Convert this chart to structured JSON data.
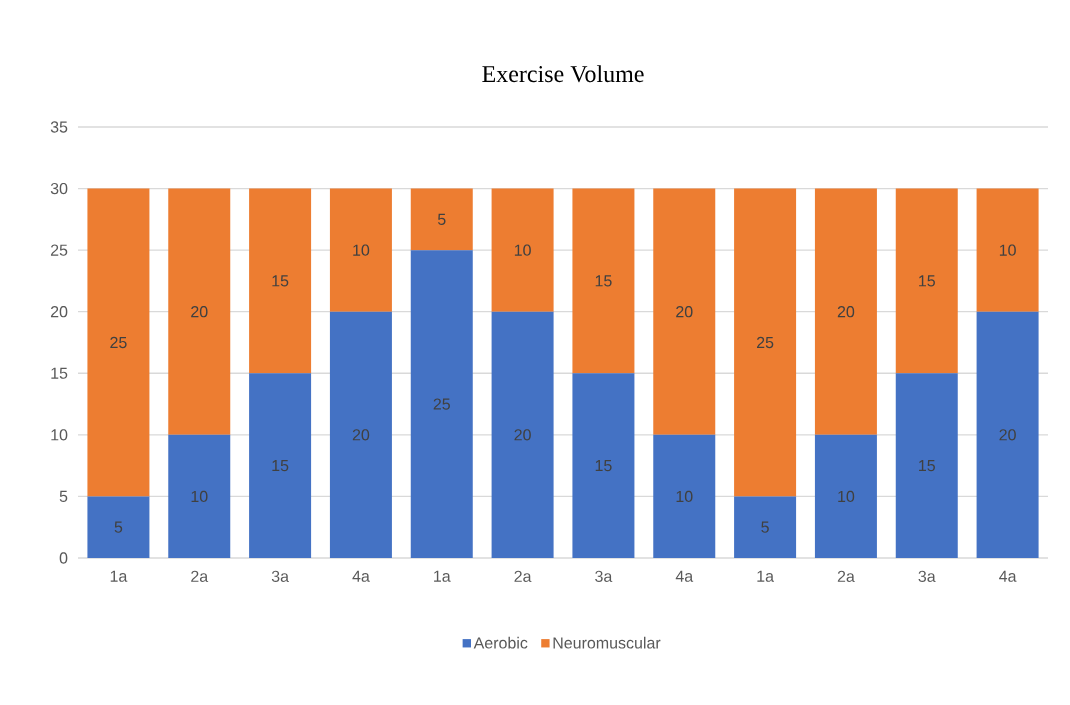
{
  "chart_data": {
    "type": "bar",
    "title": "Exercise Volume",
    "categories": [
      "1a",
      "2a",
      "3a",
      "4a",
      "1a",
      "2a",
      "3a",
      "4a",
      "1a",
      "2a",
      "3a",
      "4a"
    ],
    "series": [
      {
        "name": "Aerobic",
        "color": "#4472c4",
        "values": [
          5,
          10,
          15,
          20,
          25,
          20,
          15,
          10,
          5,
          10,
          15,
          20
        ]
      },
      {
        "name": "Neuromuscular",
        "color": "#ed7d31",
        "values": [
          25,
          20,
          15,
          10,
          5,
          10,
          15,
          20,
          25,
          20,
          15,
          10
        ]
      }
    ],
    "stacked": true,
    "ylim": [
      0,
      35
    ],
    "yticks": [
      0,
      5,
      10,
      15,
      20,
      25,
      30,
      35
    ],
    "grid": "y",
    "legend": "bottom",
    "data_labels": true
  }
}
